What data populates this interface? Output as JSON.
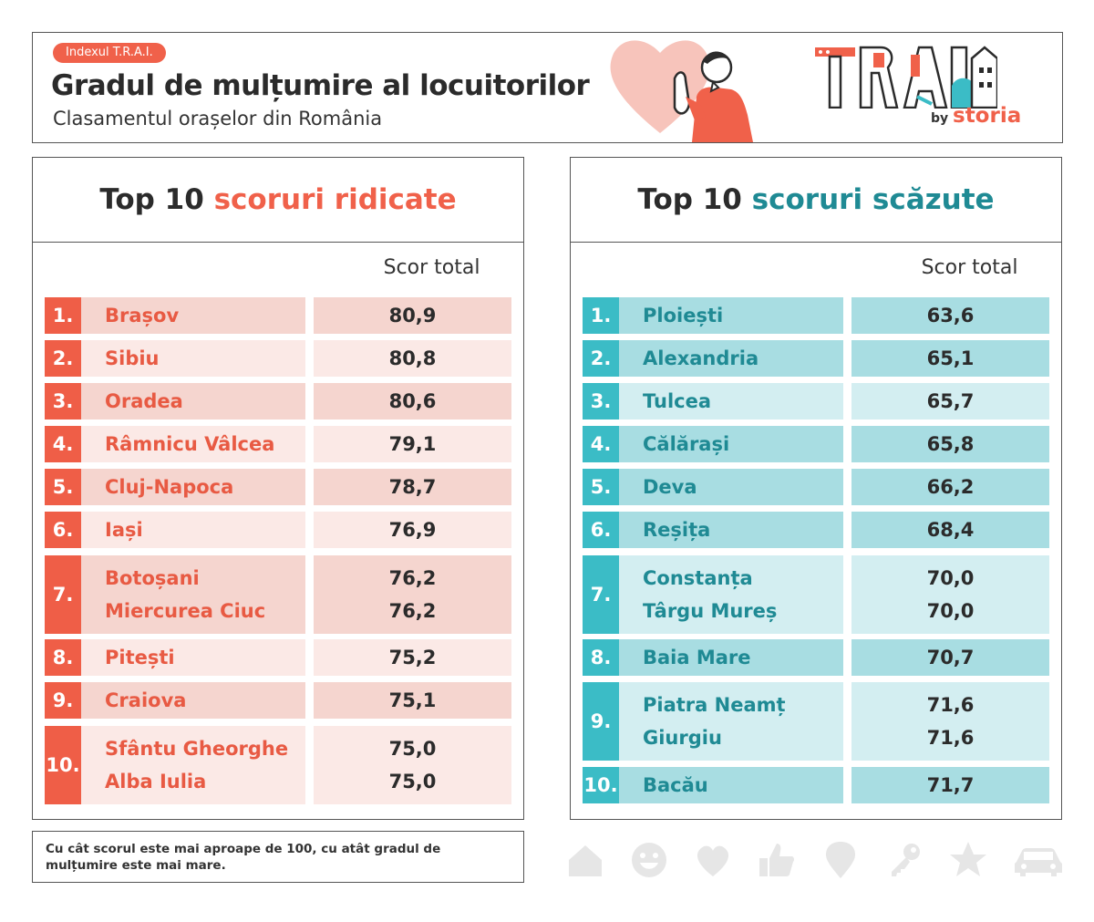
{
  "header": {
    "badge": "Indexul T.R.A.I.",
    "title": "Gradul de mulțumire al locuitorilor",
    "subtitle": "Clasamentul orașelor din România"
  },
  "logo": {
    "by": "by",
    "brand": "storia",
    "mark": "TRAI"
  },
  "colors": {
    "coral": "#f0614a",
    "teal": "#3bbcc6",
    "teal_text": "#1f8a94"
  },
  "high": {
    "title_plain": "Top 10",
    "title_accent": "scoruri ridicate",
    "column_header": "Scor total",
    "rows": [
      {
        "rank": "1.",
        "names": [
          "Brașov"
        ],
        "scores": [
          "80,9"
        ]
      },
      {
        "rank": "2.",
        "names": [
          "Sibiu"
        ],
        "scores": [
          "80,8"
        ]
      },
      {
        "rank": "3.",
        "names": [
          "Oradea"
        ],
        "scores": [
          "80,6"
        ]
      },
      {
        "rank": "4.",
        "names": [
          "Râmnicu Vâlcea"
        ],
        "scores": [
          "79,1"
        ]
      },
      {
        "rank": "5.",
        "names": [
          "Cluj-Napoca"
        ],
        "scores": [
          "78,7"
        ]
      },
      {
        "rank": "6.",
        "names": [
          "Iași"
        ],
        "scores": [
          "76,9"
        ]
      },
      {
        "rank": "7.",
        "names": [
          "Botoșani",
          "Miercurea Ciuc"
        ],
        "scores": [
          "76,2",
          "76,2"
        ]
      },
      {
        "rank": "8.",
        "names": [
          "Pitești"
        ],
        "scores": [
          "75,2"
        ]
      },
      {
        "rank": "9.",
        "names": [
          "Craiova"
        ],
        "scores": [
          "75,1"
        ]
      },
      {
        "rank": "10.",
        "names": [
          "Sfântu Gheorghe",
          "Alba Iulia"
        ],
        "scores": [
          "75,0",
          "75,0"
        ]
      }
    ]
  },
  "low": {
    "title_plain": "Top 10",
    "title_accent": "scoruri scăzute",
    "column_header": "Scor total",
    "rows": [
      {
        "rank": "1.",
        "names": [
          "Ploiești"
        ],
        "scores": [
          "63,6"
        ]
      },
      {
        "rank": "2.",
        "names": [
          "Alexandria"
        ],
        "scores": [
          "65,1"
        ]
      },
      {
        "rank": "3.",
        "names": [
          "Tulcea"
        ],
        "scores": [
          "65,7"
        ]
      },
      {
        "rank": "4.",
        "names": [
          "Călărași"
        ],
        "scores": [
          "65,8"
        ]
      },
      {
        "rank": "5.",
        "names": [
          "Deva"
        ],
        "scores": [
          "66,2"
        ]
      },
      {
        "rank": "6.",
        "names": [
          "Reșița"
        ],
        "scores": [
          "68,4"
        ]
      },
      {
        "rank": "7.",
        "names": [
          "Constanța",
          "Târgu Mureș"
        ],
        "scores": [
          "70,0",
          "70,0"
        ]
      },
      {
        "rank": "8.",
        "names": [
          "Baia Mare"
        ],
        "scores": [
          "70,7"
        ]
      },
      {
        "rank": "9.",
        "names": [
          "Piatra Neamț",
          "Giurgiu"
        ],
        "scores": [
          "71,6",
          "71,6"
        ]
      },
      {
        "rank": "10.",
        "names": [
          "Bacău"
        ],
        "scores": [
          "71,7"
        ]
      }
    ]
  },
  "footnote": "Cu cât scorul este mai aproape de 100, cu atât gradul de mulțumire este mai mare.",
  "icons": [
    "home-icon",
    "smiley-icon",
    "heart-icon",
    "thumbs-up-icon",
    "location-pin-icon",
    "key-icon",
    "star-icon",
    "car-icon"
  ]
}
